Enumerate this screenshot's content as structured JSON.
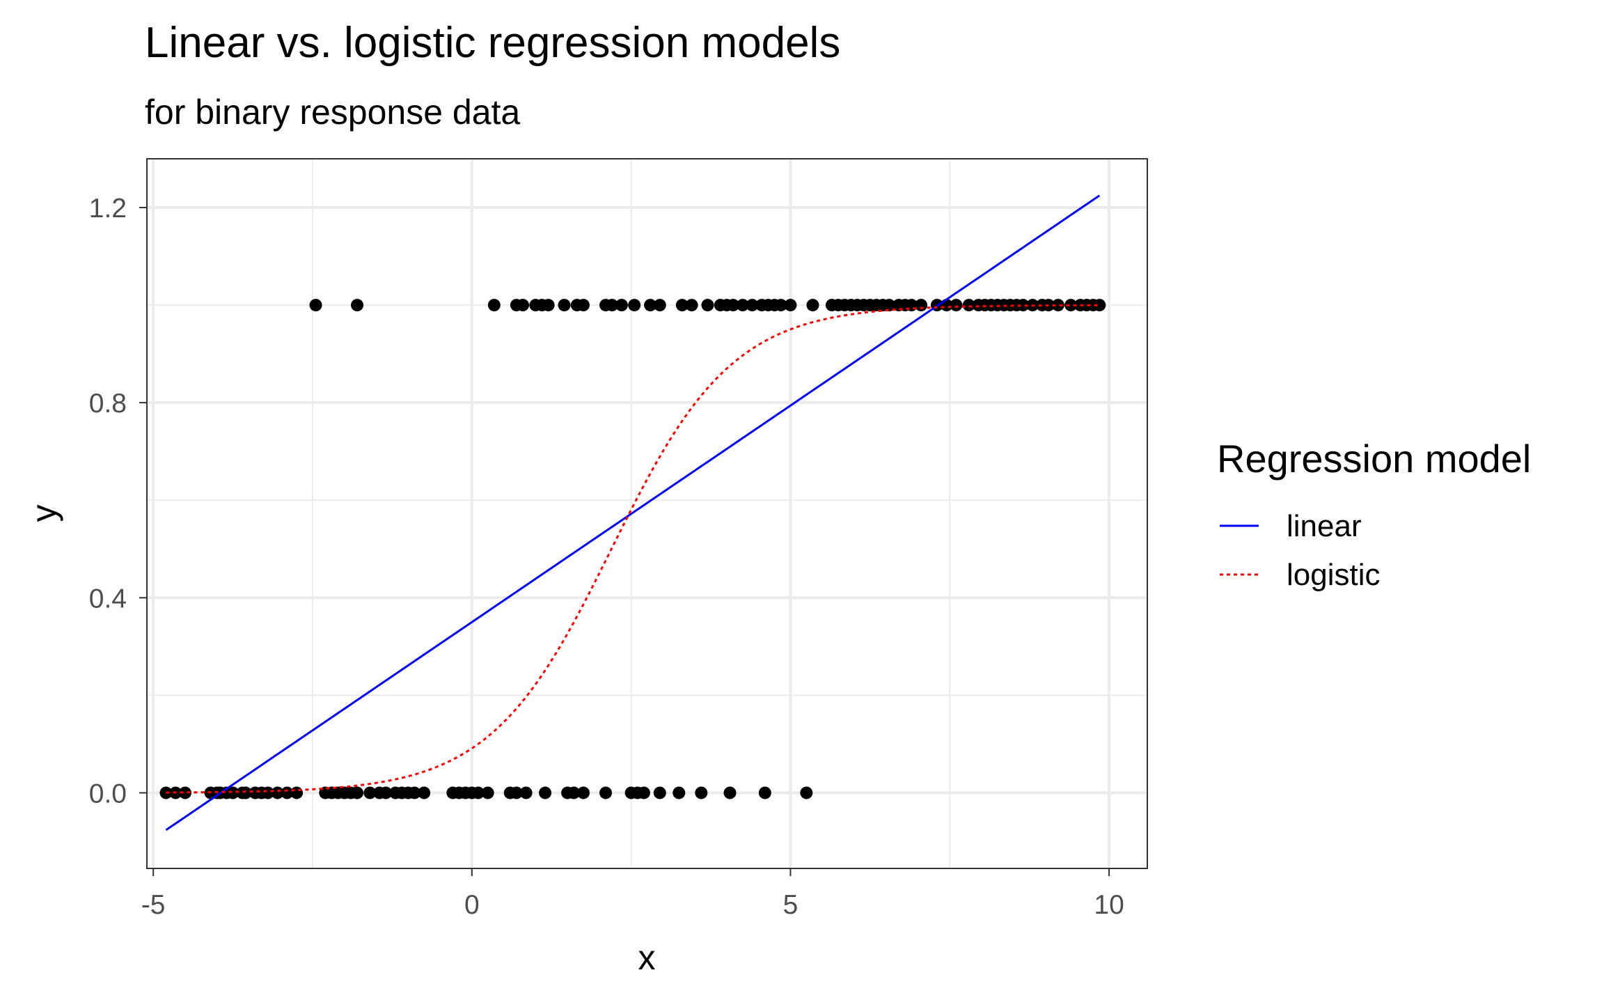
{
  "chart_data": {
    "type": "scatter",
    "title": "Linear vs. logistic regression models",
    "subtitle": "for binary response data",
    "xlabel": "x",
    "ylabel": "y",
    "xlim": [
      -5.1,
      10.6
    ],
    "ylim": [
      -0.155,
      1.3
    ],
    "x_ticks": [
      -5,
      0,
      5,
      10
    ],
    "x_tick_labels": [
      "-5",
      "0",
      "5",
      "10"
    ],
    "y_ticks": [
      0.0,
      0.4,
      0.8,
      1.2
    ],
    "y_tick_labels": [
      "0.0",
      "0.4",
      "0.8",
      "1.2"
    ],
    "grid": true,
    "legend_position": "right",
    "legend_title": "Regression model",
    "points": {
      "color": "#000000",
      "y0_x": [
        -4.8,
        -4.65,
        -4.5,
        -4.1,
        -4.0,
        -3.95,
        -3.85,
        -3.75,
        -3.6,
        -3.55,
        -3.4,
        -3.3,
        -3.2,
        -3.05,
        -2.9,
        -2.75,
        -2.3,
        -2.2,
        -2.1,
        -2.0,
        -1.9,
        -1.8,
        -1.6,
        -1.45,
        -1.35,
        -1.2,
        -1.1,
        -1.0,
        -0.9,
        -0.75,
        -0.3,
        -0.2,
        -0.1,
        0.0,
        0.1,
        0.25,
        0.6,
        0.7,
        0.85,
        1.15,
        1.5,
        1.6,
        1.75,
        2.1,
        2.5,
        2.6,
        2.7,
        2.95,
        3.25,
        3.6,
        4.05,
        4.6,
        5.25
      ],
      "y1_x": [
        -2.45,
        -1.8,
        0.35,
        0.7,
        0.8,
        1.0,
        1.1,
        1.2,
        1.45,
        1.65,
        1.75,
        2.1,
        2.2,
        2.35,
        2.55,
        2.8,
        2.95,
        3.3,
        3.45,
        3.7,
        3.9,
        4.0,
        4.1,
        4.25,
        4.4,
        4.55,
        4.65,
        4.75,
        4.85,
        5.0,
        5.35,
        5.65,
        5.75,
        5.85,
        5.95,
        6.05,
        6.15,
        6.25,
        6.35,
        6.45,
        6.55,
        6.7,
        6.8,
        6.9,
        7.05,
        7.3,
        7.45,
        7.6,
        7.8,
        7.95,
        8.05,
        8.15,
        8.25,
        8.35,
        8.45,
        8.55,
        8.65,
        8.8,
        8.95,
        9.05,
        9.2,
        9.4,
        9.55,
        9.65,
        9.75,
        9.85
      ]
    },
    "series": [
      {
        "name": "linear",
        "color": "#0000ff",
        "line_style": "solid",
        "model": "linear",
        "intercept": 0.35,
        "slope": 0.0888,
        "x_range": [
          -4.8,
          9.85
        ]
      },
      {
        "name": "logistic",
        "color": "#ff0000",
        "line_style": "dotted",
        "model": "logistic",
        "intercept": -2.3,
        "slope": 1.05,
        "x_range": [
          -4.8,
          9.85
        ]
      }
    ]
  }
}
